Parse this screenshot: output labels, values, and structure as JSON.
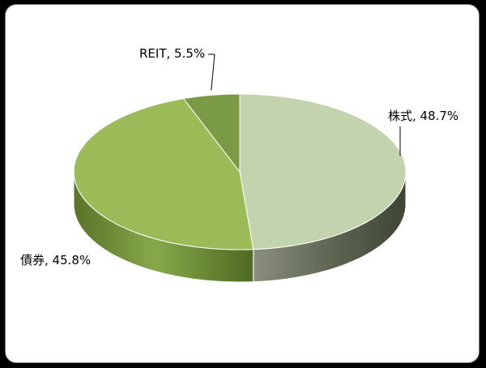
{
  "chart_data": {
    "type": "pie",
    "title": "",
    "slices": [
      {
        "name": "株式",
        "value": 48.7,
        "label": "株式, 48.7%",
        "color": "#c3d3ad"
      },
      {
        "name": "債券",
        "value": 45.8,
        "label": "債券, 45.8%",
        "color": "#9bbb59"
      },
      {
        "name": "REIT",
        "value": 5.5,
        "label": "REIT, 5.5%",
        "color": "#7a9a45"
      }
    ],
    "legend": "none",
    "style": "3d",
    "data_labels": "outside-with-leader-lines"
  }
}
